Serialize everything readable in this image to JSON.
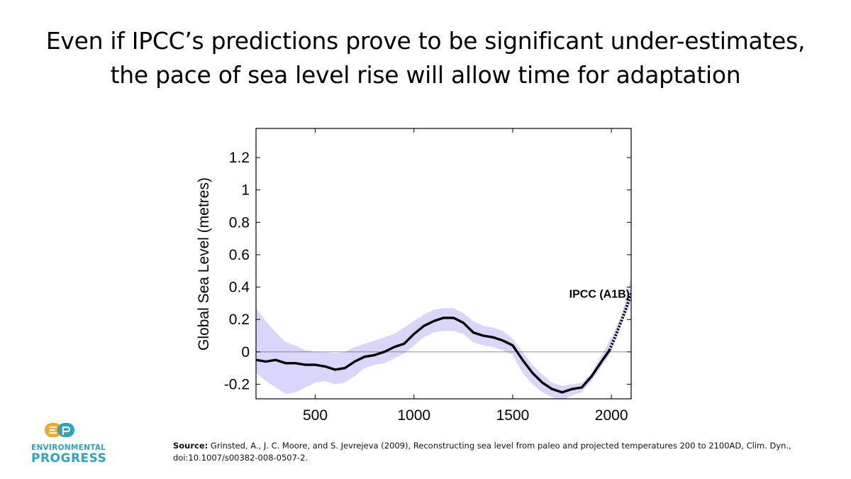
{
  "slide": {
    "title_line1": "Even if IPCC’s predictions prove to be significant under-estimates,",
    "title_line2": "the pace of sea level rise will allow time for adaptation"
  },
  "chart_data": {
    "type": "line",
    "title": "",
    "xlabel": "",
    "ylabel": "Global Sea Level (metres)",
    "xlim": [
      200,
      2100
    ],
    "ylim": [
      -0.29,
      1.38
    ],
    "x_ticks": [
      500,
      1000,
      1500,
      2000
    ],
    "x_tick_labels": [
      "500",
      "1000",
      "1500",
      "2000"
    ],
    "y_ticks": [
      -0.2,
      0,
      0.2,
      0.4,
      0.6,
      0.8,
      1,
      1.2
    ],
    "y_tick_labels": [
      "-0.2",
      "0",
      "0.2",
      "0.4",
      "0.6",
      "0.8",
      "1",
      "1.2"
    ],
    "zero_line": true,
    "grid": false,
    "annotation": "IPCC (A1B)",
    "series": [
      {
        "style": "solid",
        "color": "#000000",
        "x": [
          200,
          250,
          300,
          350,
          400,
          450,
          500,
          550,
          600,
          650,
          700,
          750,
          800,
          850,
          900,
          950,
          1000,
          1050,
          1100,
          1150,
          1200,
          1250,
          1300,
          1350,
          1400,
          1450,
          1500,
          1550,
          1600,
          1650,
          1700,
          1750,
          1800,
          1850,
          1900,
          1950,
          1990
        ],
        "values": [
          -0.05,
          -0.06,
          -0.05,
          -0.07,
          -0.07,
          -0.08,
          -0.08,
          -0.09,
          -0.11,
          -0.1,
          -0.06,
          -0.03,
          -0.02,
          0.0,
          0.03,
          0.05,
          0.11,
          0.16,
          0.19,
          0.21,
          0.21,
          0.18,
          0.12,
          0.1,
          0.09,
          0.07,
          0.04,
          -0.05,
          -0.13,
          -0.19,
          -0.23,
          -0.25,
          -0.23,
          -0.22,
          -0.15,
          -0.06,
          0.01
        ]
      },
      {
        "style": "dotted",
        "color": "#000000",
        "x": [
          1990,
          2000,
          2025,
          2050,
          2075,
          2100
        ],
        "values": [
          0.01,
          0.04,
          0.11,
          0.19,
          0.27,
          0.36
        ]
      }
    ],
    "uncertainty_band": {
      "color": "#d8d6fb",
      "x": [
        200,
        250,
        300,
        350,
        400,
        450,
        500,
        550,
        600,
        650,
        700,
        750,
        800,
        850,
        900,
        950,
        1000,
        1050,
        1100,
        1150,
        1200,
        1250,
        1300,
        1350,
        1400,
        1450,
        1500,
        1550,
        1600,
        1650,
        1700,
        1750,
        1800,
        1850,
        1900,
        1950,
        2000,
        2050,
        2100
      ],
      "upper": [
        0.27,
        0.19,
        0.12,
        0.06,
        0.04,
        0.01,
        0.0,
        0.0,
        -0.01,
        0.0,
        0.03,
        0.05,
        0.07,
        0.09,
        0.11,
        0.15,
        0.19,
        0.23,
        0.26,
        0.27,
        0.27,
        0.24,
        0.19,
        0.16,
        0.15,
        0.13,
        0.08,
        0.0,
        -0.08,
        -0.14,
        -0.19,
        -0.21,
        -0.2,
        -0.19,
        -0.13,
        -0.02,
        0.09,
        0.22,
        0.47
      ],
      "lower": [
        -0.13,
        -0.18,
        -0.22,
        -0.26,
        -0.25,
        -0.22,
        -0.19,
        -0.18,
        -0.2,
        -0.19,
        -0.15,
        -0.1,
        -0.08,
        -0.07,
        -0.04,
        -0.01,
        0.04,
        0.09,
        0.12,
        0.13,
        0.13,
        0.11,
        0.06,
        0.04,
        0.03,
        0.01,
        -0.02,
        -0.13,
        -0.2,
        -0.25,
        -0.28,
        -0.3,
        -0.27,
        -0.25,
        -0.18,
        -0.09,
        0.0,
        0.17,
        0.31
      ]
    }
  },
  "source": {
    "label": "Source:",
    "text": " Grinsted, A., J. C. Moore, and S. Jevrejeva (2009), Reconstructing sea level from paleo and projected temperatures 200 to 2100AD, Clim. Dyn., doi:10.1007/s00382-008-0507-2."
  },
  "logo": {
    "line1": "ENVIRONMENTAL",
    "line2": "PROGRESS",
    "mark": "EP",
    "colors": {
      "orange": "#f5a623",
      "blue": "#2fa3bd"
    }
  }
}
